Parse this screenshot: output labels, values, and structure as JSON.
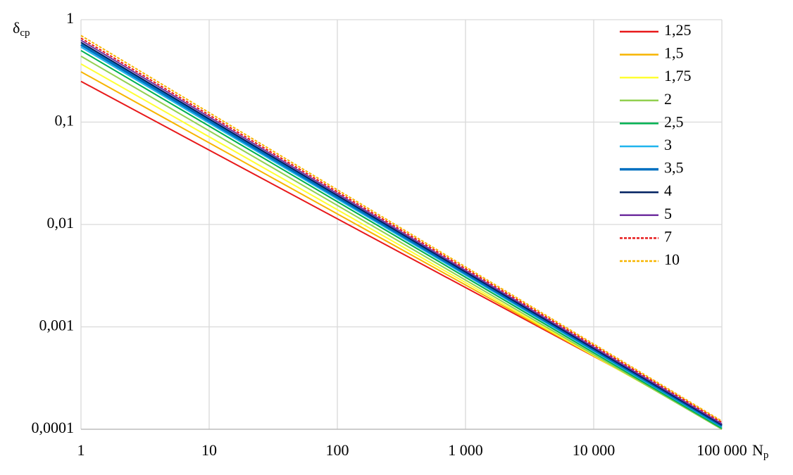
{
  "chart_data": {
    "type": "line",
    "y_label": "δ",
    "y_label_subscript": "ср",
    "x_label": "N",
    "x_label_subscript": "р",
    "x": [
      1,
      100000
    ],
    "xlog": true,
    "ylog": true,
    "grid": true,
    "legend": "upper right",
    "xlim": [
      1,
      100000
    ],
    "ylim": [
      0.0001,
      1
    ],
    "xticks": [
      1,
      10,
      100,
      {
        "value": 1000,
        "label": "1 000"
      },
      {
        "value": 10000,
        "label": "10 000"
      },
      {
        "value": 100000,
        "label": "100 000"
      }
    ],
    "yticks": [
      {
        "value": 0.0001,
        "label": "0,0001"
      },
      {
        "value": 0.001,
        "label": "0,001"
      },
      {
        "value": 0.01,
        "label": "0,01"
      },
      {
        "value": 0.1,
        "label": "0,1"
      },
      1
    ],
    "series": [
      {
        "name": "1,25",
        "color": "#e8191a",
        "values": [
          0.25,
          0.00011
        ]
      },
      {
        "name": "1,5",
        "color": "#f7b500",
        "values": [
          0.31,
          0.000105
        ]
      },
      {
        "name": "1,75",
        "color": "#ffff33",
        "values": [
          0.37,
          0.000102
        ]
      },
      {
        "name": "2",
        "color": "#92d050",
        "values": [
          0.44,
          0.0001
        ]
      },
      {
        "name": "2,5",
        "color": "#00b050",
        "values": [
          0.5,
          0.000102
        ]
      },
      {
        "name": "3",
        "color": "#1fb4ee",
        "values": [
          0.54,
          0.000105
        ]
      },
      {
        "name": "3,5",
        "color": "#0070c0",
        "values": [
          0.57,
          0.000108
        ]
      },
      {
        "name": "4",
        "color": "#002060",
        "values": [
          0.6,
          0.00011
        ]
      },
      {
        "name": "5",
        "color": "#7030a0",
        "values": [
          0.63,
          0.000113
        ]
      },
      {
        "name": "7",
        "color": "#e8191a",
        "dashed": true,
        "values": [
          0.66,
          0.000117
        ]
      },
      {
        "name": "10",
        "color": "#f7b500",
        "dashed": true,
        "values": [
          0.7,
          0.00012
        ]
      }
    ]
  }
}
